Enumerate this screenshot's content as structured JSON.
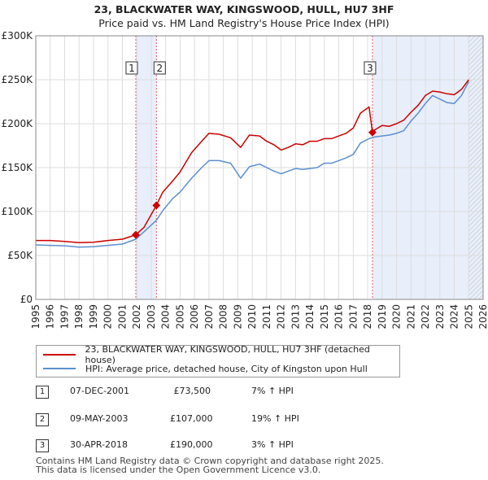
{
  "title_line1": "23, BLACKWATER WAY, KINGSWOOD, HULL, HU7 3HF",
  "title_line2": "Price paid vs. HM Land Registry's House Price Index (HPI)",
  "chart_data": {
    "type": "line",
    "title": "23, BLACKWATER WAY, KINGSWOOD, HULL, HU7 3HF — Price paid vs. HM Land Registry's House Price Index (HPI)",
    "xlabel": "",
    "ylabel": "",
    "xlim": [
      1995,
      2026
    ],
    "ylim": [
      0,
      300000
    ],
    "yticks": [
      0,
      50000,
      100000,
      150000,
      200000,
      250000,
      300000
    ],
    "ytick_labels": [
      "£0",
      "£50K",
      "£100K",
      "£150K",
      "£200K",
      "£250K",
      "£300K"
    ],
    "xticks": [
      "1995",
      "1996",
      "1997",
      "1998",
      "1999",
      "2000",
      "2001",
      "2002",
      "2003",
      "2004",
      "2005",
      "2006",
      "2007",
      "2008",
      "2009",
      "2010",
      "2011",
      "2012",
      "2013",
      "2014",
      "2015",
      "2016",
      "2017",
      "2018",
      "2019",
      "2020",
      "2021",
      "2022",
      "2023",
      "2024",
      "2025",
      "2026"
    ],
    "grid": true,
    "future_start": 2025.0,
    "shaded_spans": [
      [
        2001.93,
        2003.36
      ],
      [
        2018.33,
        2026
      ]
    ],
    "series": [
      {
        "name": "23, BLACKWATER WAY, KINGSWOOD, HULL, HU7 3HF (detached house)",
        "color": "#cc0000",
        "x": [
          1995,
          1996,
          1997,
          1998,
          1999,
          2000,
          2001,
          2001.93,
          2002.5,
          2003.36,
          2003.8,
          2004.5,
          2005,
          2005.8,
          2006.5,
          2007,
          2007.7,
          2008.5,
          2009.2,
          2009.8,
          2010.5,
          2011,
          2011.5,
          2012,
          2012.5,
          2013,
          2013.5,
          2014,
          2014.5,
          2015,
          2015.5,
          2016,
          2016.5,
          2017,
          2017.5,
          2018.1,
          2018.33,
          2018.5,
          2019,
          2019.5,
          2020,
          2020.5,
          2021,
          2021.5,
          2022,
          2022.5,
          2023,
          2023.5,
          2024,
          2024.5,
          2025.0
        ],
        "values": [
          67000,
          67000,
          66000,
          64500,
          65000,
          67000,
          68500,
          73500,
          82000,
          107000,
          122000,
          135000,
          145000,
          167000,
          180000,
          189000,
          188000,
          184000,
          173000,
          187000,
          186000,
          180000,
          176000,
          170000,
          173000,
          177000,
          176000,
          180000,
          180000,
          183000,
          183000,
          186000,
          189000,
          195000,
          212000,
          219000,
          190000,
          193000,
          198000,
          197000,
          200000,
          204000,
          213000,
          221000,
          232000,
          237000,
          236000,
          234000,
          233000,
          239000,
          250000
        ]
      },
      {
        "name": "HPI: Average price, detached house, City of Kingston upon Hull",
        "color": "#5b8fd0",
        "x": [
          1995,
          1996,
          1997,
          1998,
          1999,
          2000,
          2001,
          2001.93,
          2002.5,
          2003.36,
          2003.8,
          2004.5,
          2005,
          2005.8,
          2006.5,
          2007,
          2007.7,
          2008.5,
          2009.2,
          2009.8,
          2010.5,
          2011,
          2011.5,
          2012,
          2012.5,
          2013,
          2013.5,
          2014,
          2014.5,
          2015,
          2015.5,
          2016,
          2016.5,
          2017,
          2017.5,
          2018.1,
          2018.33,
          2018.5,
          2019,
          2019.5,
          2020,
          2020.5,
          2021,
          2021.5,
          2022,
          2022.5,
          2023,
          2023.5,
          2024,
          2024.5,
          2025.0
        ],
        "values": [
          62000,
          61500,
          61000,
          59500,
          60000,
          61500,
          63000,
          68500,
          77000,
          90000,
          101000,
          115000,
          122000,
          138000,
          150000,
          158000,
          158000,
          155000,
          138000,
          151000,
          154000,
          150000,
          146000,
          143000,
          146000,
          149000,
          148000,
          149000,
          150000,
          155000,
          155000,
          158000,
          161000,
          165000,
          178000,
          183000,
          184000,
          185000,
          186000,
          187000,
          189000,
          192000,
          203000,
          212000,
          223000,
          232000,
          228000,
          224000,
          223000,
          232000,
          248000
        ]
      }
    ],
    "sales": [
      {
        "label": "1",
        "date": "07-DEC-2001",
        "x": 2001.93,
        "price": 73500
      },
      {
        "label": "2",
        "date": "09-MAY-2003",
        "x": 2003.36,
        "price": 107000
      },
      {
        "label": "3",
        "date": "30-APR-2018",
        "x": 2018.33,
        "price": 190000
      }
    ]
  },
  "legend": {
    "property": "23, BLACKWATER WAY, KINGSWOOD, HULL, HU7 3HF (detached house)",
    "hpi": "HPI: Average price, detached house, City of Kingston upon Hull"
  },
  "sales_table": [
    {
      "badge": "1",
      "date": "07-DEC-2001",
      "price": "£73,500",
      "hpi": "7% ↑ HPI"
    },
    {
      "badge": "2",
      "date": "09-MAY-2003",
      "price": "£107,000",
      "hpi": "19% ↑ HPI"
    },
    {
      "badge": "3",
      "date": "30-APR-2018",
      "price": "£190,000",
      "hpi": "3% ↑ HPI"
    }
  ],
  "footer": {
    "line1": "Contains HM Land Registry data © Crown copyright and database right 2025.",
    "line2": "This data is licensed under the Open Government Licence v3.0."
  },
  "colors": {
    "property_line": "#cc0000",
    "hpi_line": "#5b8fd0",
    "shade": "#e8eefa",
    "grid": "#dddddd"
  }
}
